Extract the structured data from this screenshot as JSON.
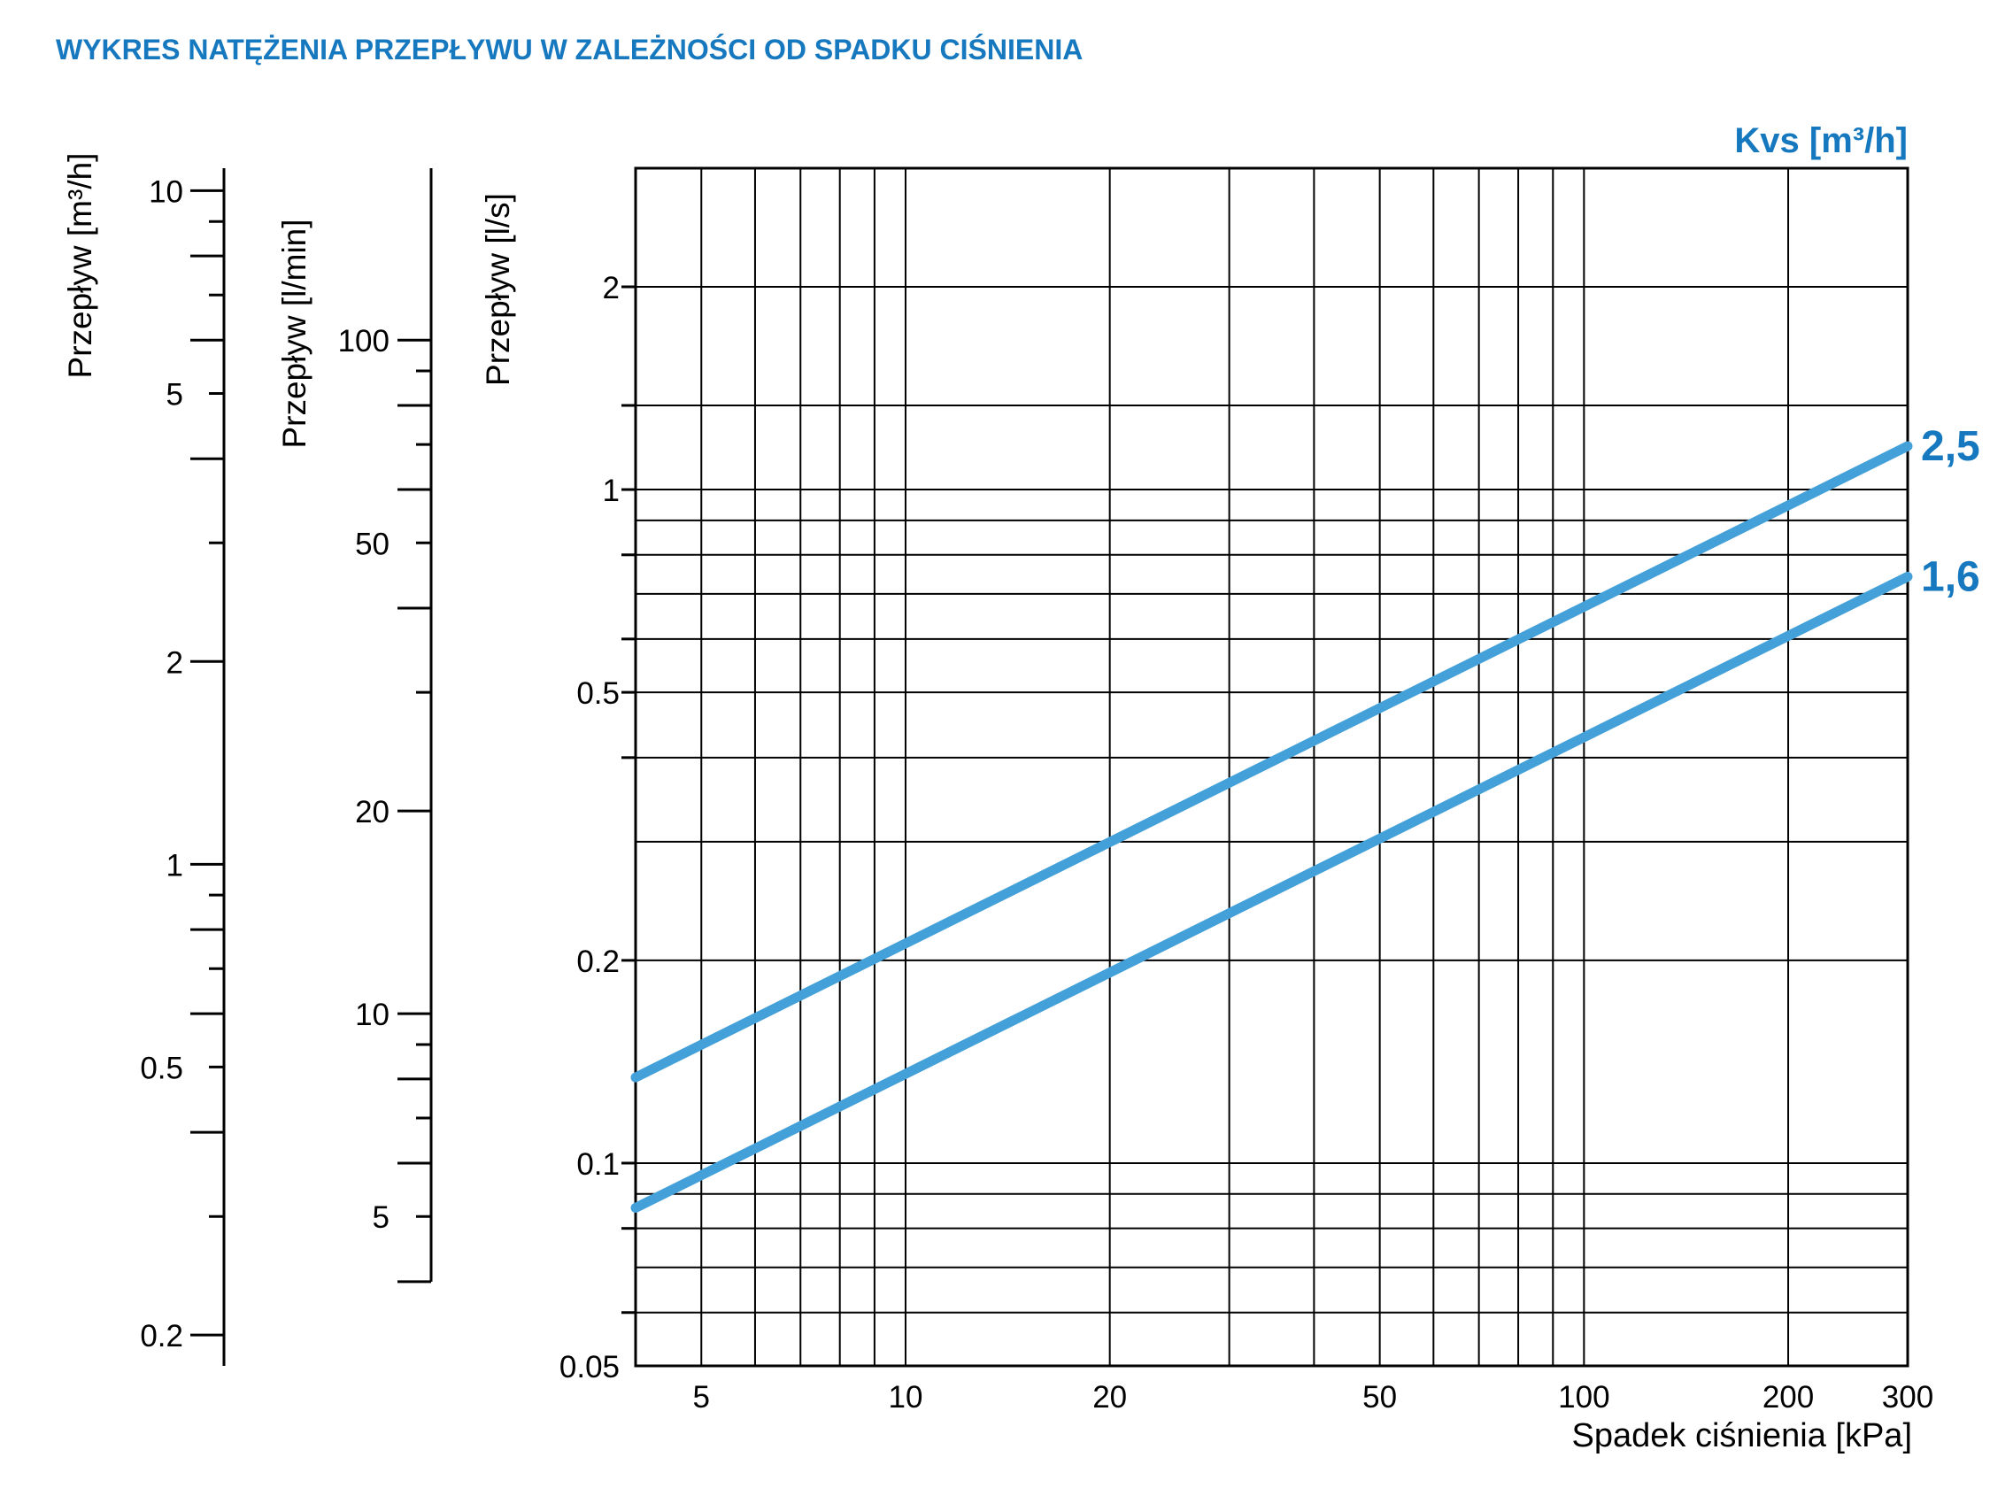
{
  "title": "WYKRES NATĘŻENIA PRZEPŁYWU W ZALEŻNOŚCI OD SPADKU CIŚNIENIA",
  "kvs_header": "Kvs [m³/h]",
  "colors": {
    "accent_text": "#1678be",
    "curve": "#43a0d8",
    "grid": "#000000",
    "background": "#ffffff"
  },
  "chart_data": {
    "type": "line",
    "title": "WYKRES NATĘŻENIA PRZEPŁYWU W ZALEŻNOŚCI OD SPADKU CIŚNIENIA",
    "scale": "log-log",
    "grid": "on",
    "x_axis": {
      "label": "Spadek ciśnienia [kPa]",
      "unit": "kPa",
      "range": [
        4,
        300
      ],
      "gridlines": [
        5,
        6,
        7,
        8,
        9,
        10,
        20,
        30,
        40,
        50,
        60,
        70,
        80,
        90,
        100,
        200
      ],
      "labeled_ticks": [
        {
          "v": 5,
          "t": "5"
        },
        {
          "v": 10,
          "t": "10"
        },
        {
          "v": 20,
          "t": "20"
        },
        {
          "v": 50,
          "t": "50"
        },
        {
          "v": 100,
          "t": "100"
        },
        {
          "v": 200,
          "t": "200"
        },
        {
          "v": 300,
          "t": "300"
        }
      ]
    },
    "y_axis": {
      "label": "Przepływ [l/s]",
      "unit": "l/s",
      "range": [
        0.05,
        3.0
      ],
      "gridlines": [
        2,
        1.3333,
        1,
        0.9,
        0.8,
        0.7,
        0.6,
        0.5,
        0.4,
        0.3,
        0.2,
        0.1,
        0.09,
        0.08,
        0.07,
        0.06
      ],
      "edge_ticks": [
        2,
        1.3333,
        1,
        0.8,
        0.6,
        0.5,
        0.4,
        0.2,
        0.1,
        0.08,
        0.06
      ],
      "labeled_ticks": [
        {
          "v": 2,
          "t": "2"
        },
        {
          "v": 1,
          "t": "1"
        },
        {
          "v": 0.5,
          "t": "0.5"
        },
        {
          "v": 0.2,
          "t": "0.2"
        },
        {
          "v": 0.1,
          "t": "0.1"
        },
        {
          "v": 0.05,
          "t": "0.05"
        }
      ]
    },
    "flow_scales": [
      {
        "label": "Przepływ [m³/h]",
        "unit": "m³/h",
        "per_ls": 3.6,
        "ticks": [
          10,
          9,
          8,
          7,
          6,
          5,
          4,
          3,
          2,
          1,
          0.9,
          0.8,
          0.7,
          0.6,
          0.5,
          0.4,
          0.3,
          0.2
        ],
        "labeled_ticks": [
          {
            "v": 10,
            "t": "10"
          },
          {
            "v": 5,
            "t": "5"
          },
          {
            "v": 2,
            "t": "2"
          },
          {
            "v": 1,
            "t": "1"
          },
          {
            "v": 0.5,
            "t": "0.5"
          },
          {
            "v": 0.2,
            "t": "0.2"
          }
        ]
      },
      {
        "label": "Przepływ [l/min]",
        "unit": "l/min",
        "per_ls": 60,
        "ticks": [
          100,
          90,
          80,
          70,
          60,
          50,
          40,
          30,
          20,
          10,
          9,
          8,
          7,
          6,
          5,
          4
        ],
        "labeled_ticks": [
          {
            "v": 100,
            "t": "100"
          },
          {
            "v": 50,
            "t": "50"
          },
          {
            "v": 20,
            "t": "20"
          },
          {
            "v": 10,
            "t": "10"
          },
          {
            "v": 5,
            "t": "5"
          }
        ]
      }
    ],
    "series": [
      {
        "name": "2,5",
        "kvs": 2.5,
        "points": [
          {
            "kpa": 4,
            "ls": 0.139
          },
          {
            "kpa": 300,
            "ls": 1.203
          }
        ]
      },
      {
        "name": "1,6",
        "kvs": 1.6,
        "points": [
          {
            "kpa": 4,
            "ls": 0.089
          },
          {
            "kpa": 300,
            "ls": 0.77
          }
        ]
      }
    ]
  }
}
